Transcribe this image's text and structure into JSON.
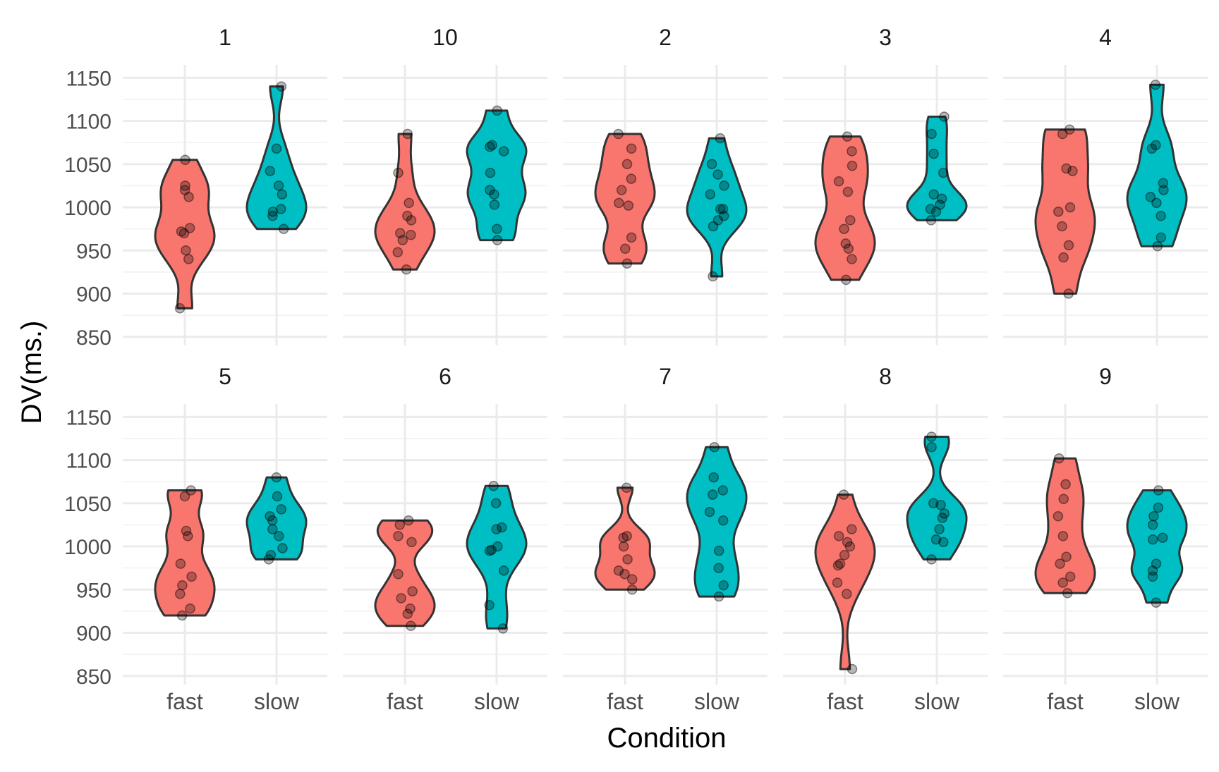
{
  "chart_data": {
    "type": "violin",
    "xlabel": "Condition",
    "ylabel": "DV(ms.)",
    "ylim": [
      840,
      1165
    ],
    "y_ticks": [
      850,
      900,
      950,
      1000,
      1050,
      1100,
      1150
    ],
    "y_tick_labels": [
      "850",
      "900",
      "950",
      "1000",
      "1050",
      "1100",
      "1150"
    ],
    "categories": [
      "fast",
      "slow"
    ],
    "grid": true,
    "legend": "none",
    "colors": {
      "fast": "#F8766D",
      "slow": "#00BFC4"
    },
    "facets": [
      {
        "label": "1",
        "fast": [
          883,
          940,
          950,
          970,
          972,
          976,
          1012,
          1020,
          1025,
          1055
        ],
        "slow": [
          975,
          990,
          995,
          998,
          1015,
          1025,
          1042,
          1068,
          1140
        ]
      },
      {
        "label": "10",
        "fast": [
          928,
          948,
          962,
          968,
          970,
          985,
          990,
          1005,
          1040,
          1085
        ],
        "slow": [
          962,
          975,
          1003,
          1015,
          1020,
          1040,
          1065,
          1070,
          1072,
          1112
        ]
      },
      {
        "label": "2",
        "fast": [
          935,
          952,
          965,
          1002,
          1005,
          1020,
          1033,
          1050,
          1068,
          1085
        ],
        "slow": [
          920,
          978,
          985,
          990,
          998,
          998,
          1015,
          1025,
          1038,
          1050,
          1080
        ]
      },
      {
        "label": "3",
        "fast": [
          916,
          940,
          952,
          958,
          975,
          985,
          1018,
          1030,
          1048,
          1065,
          1082
        ],
        "slow": [
          985,
          995,
          998,
          1003,
          1010,
          1015,
          1040,
          1062,
          1085,
          1105
        ]
      },
      {
        "label": "4",
        "fast": [
          900,
          942,
          956,
          978,
          995,
          1000,
          1042,
          1045,
          1085,
          1090
        ],
        "slow": [
          955,
          965,
          990,
          1005,
          1012,
          1020,
          1028,
          1068,
          1072,
          1142
        ]
      },
      {
        "label": "5",
        "fast": [
          920,
          928,
          945,
          955,
          965,
          980,
          1012,
          1018,
          1058,
          1065
        ],
        "slow": [
          985,
          990,
          998,
          1012,
          1020,
          1030,
          1035,
          1043,
          1058,
          1080
        ]
      },
      {
        "label": "6",
        "fast": [
          908,
          922,
          928,
          940,
          948,
          968,
          1005,
          1012,
          1025,
          1030
        ],
        "slow": [
          905,
          932,
          972,
          995,
          996,
          1000,
          1020,
          1022,
          1050,
          1070
        ]
      },
      {
        "label": "7",
        "fast": [
          950,
          962,
          968,
          972,
          985,
          1000,
          1010,
          1012,
          1068
        ],
        "slow": [
          942,
          955,
          975,
          995,
          1030,
          1040,
          1060,
          1065,
          1080,
          1115
        ]
      },
      {
        "label": "8",
        "fast": [
          858,
          945,
          958,
          978,
          980,
          990,
          1000,
          1005,
          1012,
          1020,
          1060
        ],
        "slow": [
          985,
          1005,
          1008,
          1020,
          1033,
          1038,
          1048,
          1050,
          1115,
          1127
        ]
      },
      {
        "label": "9",
        "fast": [
          946,
          958,
          965,
          980,
          988,
          1012,
          1035,
          1055,
          1072,
          1102
        ],
        "slow": [
          935,
          965,
          972,
          980,
          1008,
          1010,
          1025,
          1035,
          1045,
          1065
        ]
      }
    ]
  }
}
